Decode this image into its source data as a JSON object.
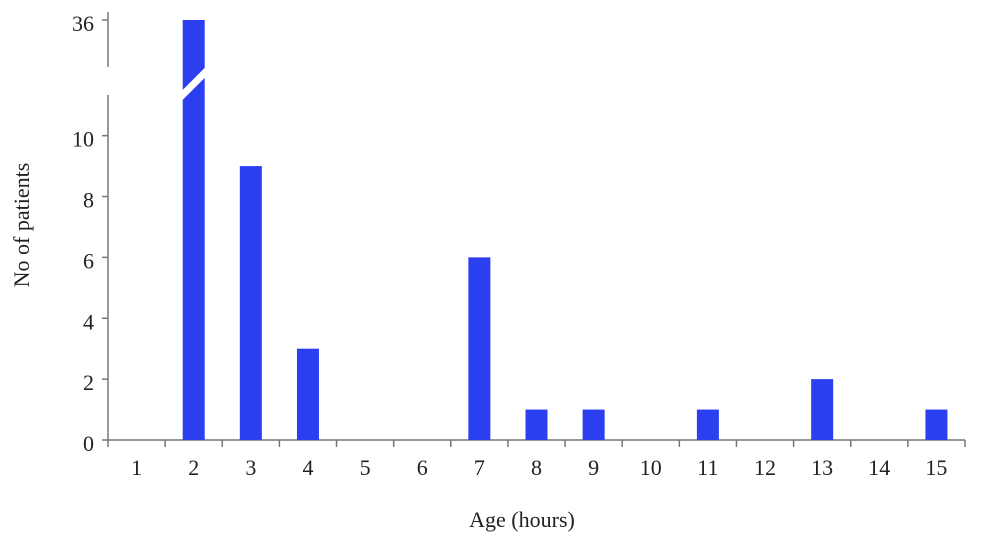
{
  "chart_data": {
    "type": "bar",
    "x_label": "Age (hours)",
    "y_label": "No of patients",
    "categories": [
      "1",
      "2",
      "3",
      "4",
      "5",
      "6",
      "7",
      "8",
      "9",
      "10",
      "11",
      "12",
      "13",
      "14",
      "15"
    ],
    "values": [
      0,
      36,
      9,
      3,
      0,
      0,
      6,
      1,
      1,
      0,
      1,
      0,
      2,
      0,
      1
    ],
    "color": "#2b3ff0",
    "ylim": [
      0,
      36
    ],
    "yticks": [
      0,
      2,
      4,
      6,
      8,
      10,
      36
    ],
    "axis_break": [
      11.8,
      34
    ]
  }
}
